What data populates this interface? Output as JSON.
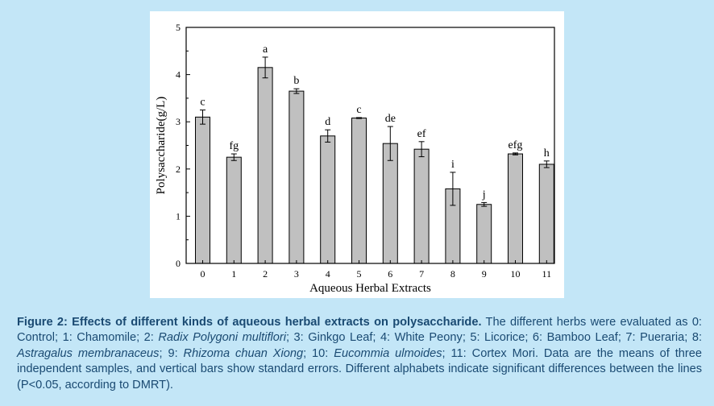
{
  "chart_data": {
    "type": "bar",
    "categories": [
      "0",
      "1",
      "2",
      "3",
      "4",
      "5",
      "6",
      "7",
      "8",
      "9",
      "10",
      "11"
    ],
    "values": [
      3.1,
      2.25,
      4.15,
      3.65,
      2.7,
      3.08,
      2.54,
      2.42,
      1.58,
      1.25,
      2.32,
      2.1
    ],
    "errors": [
      0.15,
      0.07,
      0.22,
      0.05,
      0.13,
      0.01,
      0.36,
      0.16,
      0.35,
      0.04,
      0.02,
      0.07
    ],
    "significance_letters": [
      "c",
      "fg",
      "a",
      "b",
      "d",
      "c",
      "de",
      "ef",
      "i",
      "j",
      "efg",
      "h"
    ],
    "xlabel": "Aqueous Herbal Extracts",
    "ylabel": "Polysaccharide(g/L)",
    "ylim": [
      0,
      5
    ],
    "yticks": [
      "0",
      "1",
      "2",
      "3",
      "4",
      "5"
    ],
    "grid": false,
    "bar_color": "#c0c0c0"
  },
  "caption": {
    "label": "Figure 2: Effects of different kinds of aqueous herbal extracts on polysaccharide.",
    "segments": [
      {
        "text": " The different herbs were evaluated as 0: Control; 1: Chamomile; 2: ",
        "italic": false
      },
      {
        "text": "Radix Polygoni multiflori",
        "italic": true
      },
      {
        "text": "; 3: Ginkgo Leaf; 4: White Peony; 5: Licorice; 6: Bamboo Leaf; 7: Pueraria; 8: ",
        "italic": false
      },
      {
        "text": "Astragalus membranaceus",
        "italic": true
      },
      {
        "text": "; 9: ",
        "italic": false
      },
      {
        "text": "Rhizoma chuan Xiong",
        "italic": true
      },
      {
        "text": "; 10: ",
        "italic": false
      },
      {
        "text": "Eucommia ulmoides",
        "italic": true
      },
      {
        "text": "; 11: Cortex Mori. Data are the means of three independent samples, and vertical bars show standard errors. Different alphabets indicate significant differences between the lines (P<0.05, according to DMRT).",
        "italic": false
      }
    ]
  }
}
